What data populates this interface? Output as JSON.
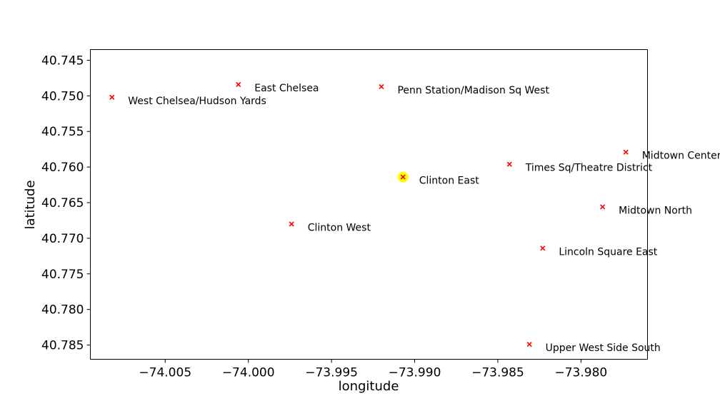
{
  "chart_data": {
    "type": "scatter",
    "xlabel": "longitude",
    "ylabel": "latitude",
    "xlim": [
      -74.0095,
      -73.976
    ],
    "ylim": [
      40.7435,
      40.787
    ],
    "y_inverted": true,
    "grid": false,
    "x_ticks": [
      {
        "value": -74.005,
        "label": "−74.005"
      },
      {
        "value": -74.0,
        "label": "−74.000"
      },
      {
        "value": -73.995,
        "label": "−73.995"
      },
      {
        "value": -73.99,
        "label": "−73.990"
      },
      {
        "value": -73.985,
        "label": "−73.985"
      },
      {
        "value": -73.98,
        "label": "−73.980"
      }
    ],
    "y_ticks": [
      {
        "value": 40.745,
        "label": "40.745"
      },
      {
        "value": 40.75,
        "label": "40.750"
      },
      {
        "value": 40.755,
        "label": "40.755"
      },
      {
        "value": 40.76,
        "label": "40.760"
      },
      {
        "value": 40.765,
        "label": "40.765"
      },
      {
        "value": 40.77,
        "label": "40.770"
      },
      {
        "value": 40.775,
        "label": "40.775"
      },
      {
        "value": 40.78,
        "label": "40.780"
      },
      {
        "value": 40.785,
        "label": "40.785"
      }
    ],
    "marker_color": "#ff0000",
    "highlight_color": "#ffff00",
    "points": [
      {
        "name": "West Chelsea/Hudson Yards",
        "x": -74.0082,
        "y": 40.7502
      },
      {
        "name": "East Chelsea",
        "x": -74.0006,
        "y": 40.7484
      },
      {
        "name": "Penn Station/Madison Sq West",
        "x": -73.992,
        "y": 40.7487
      },
      {
        "name": "Midtown Center",
        "x": -73.9773,
        "y": 40.7579
      },
      {
        "name": "Times Sq/Theatre District",
        "x": -73.9843,
        "y": 40.7596
      },
      {
        "name": "Clinton East",
        "x": -73.9907,
        "y": 40.7614,
        "highlighted": true
      },
      {
        "name": "Midtown North",
        "x": -73.9787,
        "y": 40.7656
      },
      {
        "name": "Clinton West",
        "x": -73.9974,
        "y": 40.768
      },
      {
        "name": "Lincoln Square East",
        "x": -73.9823,
        "y": 40.7714
      },
      {
        "name": "Upper West Side South",
        "x": -73.9831,
        "y": 40.7849
      }
    ]
  }
}
